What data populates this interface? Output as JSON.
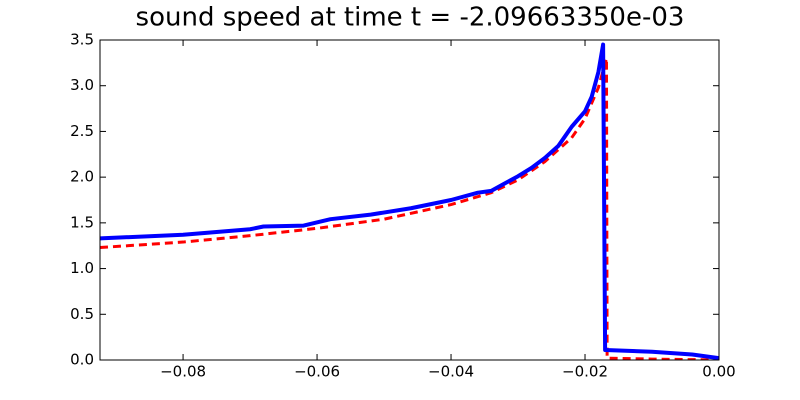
{
  "chart_data": {
    "type": "line",
    "title": "sound speed at time t = -2.09663350e-03",
    "xlim": [
      -0.0924,
      0
    ],
    "ylim": [
      0,
      3.5
    ],
    "xticks": [
      {
        "value": -0.08,
        "label": "−0.08"
      },
      {
        "value": -0.06,
        "label": "−0.06"
      },
      {
        "value": -0.04,
        "label": "−0.04"
      },
      {
        "value": -0.02,
        "label": "−0.02"
      },
      {
        "value": 0,
        "label": "0.00"
      }
    ],
    "yticks": [
      {
        "value": 0,
        "label": "0.0"
      },
      0.5,
      {
        "value": 1,
        "label": "1.0"
      },
      1.5,
      {
        "value": 2,
        "label": "2.0"
      },
      2.5,
      {
        "value": 3,
        "label": "3.0"
      },
      3.5
    ],
    "grid": false,
    "series": [
      {
        "color": "#ff0000",
        "dash": true,
        "x": [
          -0.0924,
          -0.08,
          -0.07,
          -0.06,
          -0.05,
          -0.04,
          -0.034,
          -0.03,
          -0.026,
          -0.022,
          -0.02,
          -0.018,
          -0.0168,
          -0.0167,
          -0.01,
          0
        ],
        "values": [
          1.23,
          1.29,
          1.36,
          1.44,
          1.54,
          1.7,
          1.83,
          1.97,
          2.17,
          2.43,
          2.64,
          2.98,
          3.3,
          0.02,
          0.01,
          0
        ]
      },
      {
        "color": "#0000ff",
        "dash": false,
        "x": [
          -0.0924,
          -0.08,
          -0.07,
          -0.068,
          -0.062,
          -0.058,
          -0.052,
          -0.046,
          -0.04,
          -0.036,
          -0.034,
          -0.032,
          -0.03,
          -0.028,
          -0.026,
          -0.024,
          -0.022,
          -0.02,
          -0.019,
          -0.018,
          -0.0173,
          -0.017,
          -0.01,
          -0.004,
          0
        ],
        "values": [
          1.33,
          1.37,
          1.43,
          1.46,
          1.47,
          1.54,
          1.59,
          1.66,
          1.75,
          1.83,
          1.85,
          1.93,
          2.01,
          2.1,
          2.21,
          2.34,
          2.55,
          2.72,
          2.88,
          3.15,
          3.45,
          0.11,
          0.09,
          0.06,
          0.02
        ]
      }
    ]
  }
}
